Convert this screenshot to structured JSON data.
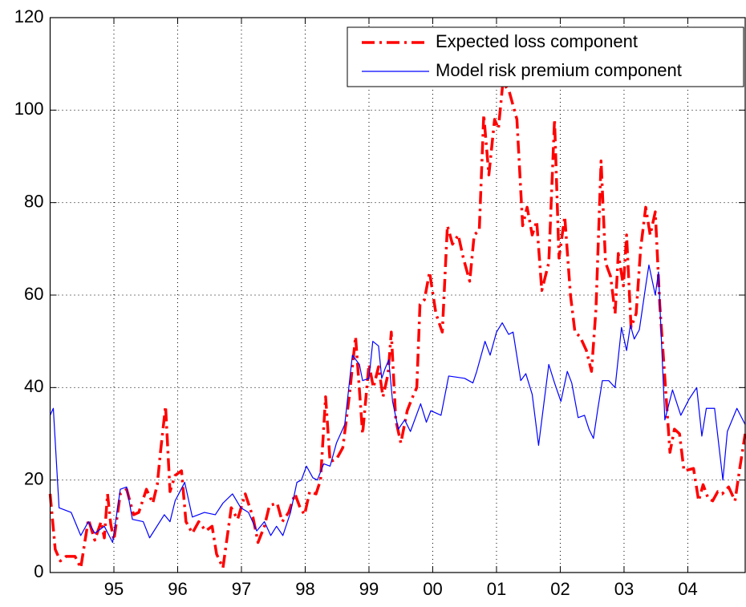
{
  "chart_data": {
    "type": "line",
    "xlim": [
      1994.0,
      2004.9
    ],
    "xticks": [
      {
        "value": 1995,
        "label": "95"
      },
      {
        "value": 1996,
        "label": "96"
      },
      {
        "value": 1997,
        "label": "97"
      },
      {
        "value": 1998,
        "label": "98"
      },
      {
        "value": 1999,
        "label": "99"
      },
      {
        "value": 2000,
        "label": "00"
      },
      {
        "value": 2001,
        "label": "01"
      },
      {
        "value": 2002,
        "label": "02"
      },
      {
        "value": 2003,
        "label": "03"
      },
      {
        "value": 2004,
        "label": "04"
      }
    ],
    "ylim": [
      0,
      120
    ],
    "yticks": [
      0,
      20,
      40,
      60,
      80,
      100,
      120
    ],
    "grid": true,
    "legend": "upper right",
    "series": [
      {
        "name": "Expected loss component",
        "color": "#ff0000",
        "style": "dashdot",
        "x": [
          1994.0,
          1994.08,
          1994.16,
          1994.25,
          1994.39,
          1994.48,
          1994.6,
          1994.7,
          1994.8,
          1994.85,
          1994.9,
          1994.95,
          1995.0,
          1995.1,
          1995.2,
          1995.31,
          1995.39,
          1995.51,
          1995.61,
          1995.68,
          1995.73,
          1995.81,
          1995.88,
          1995.96,
          1996.06,
          1996.13,
          1996.23,
          1996.33,
          1996.44,
          1996.54,
          1996.61,
          1996.71,
          1996.84,
          1996.94,
          1997.06,
          1997.18,
          1997.26,
          1997.36,
          1997.44,
          1997.56,
          1997.64,
          1997.74,
          1997.84,
          1997.92,
          1997.99,
          1998.07,
          1998.17,
          1998.24,
          1998.32,
          1998.39,
          1998.49,
          1998.59,
          1998.69,
          1998.79,
          1998.9,
          1999.0,
          1999.07,
          1999.15,
          1999.22,
          1999.3,
          1999.35,
          1999.42,
          1999.5,
          1999.6,
          1999.67,
          1999.75,
          1999.8,
          1999.87,
          1999.95,
          2000.05,
          2000.15,
          2000.23,
          2000.31,
          2000.4,
          2000.48,
          2000.58,
          2000.65,
          2000.73,
          2000.8,
          2000.88,
          2000.97,
          2001.03,
          2001.1,
          2001.2,
          2001.32,
          2001.41,
          2001.48,
          2001.56,
          2001.63,
          2001.71,
          2001.82,
          2001.91,
          2001.98,
          2002.07,
          2002.16,
          2002.23,
          2002.31,
          2002.41,
          2002.49,
          2002.56,
          2002.64,
          2002.71,
          2002.79,
          2002.86,
          2002.91,
          2002.99,
          2003.04,
          2003.11,
          2003.19,
          2003.26,
          2003.34,
          2003.41,
          2003.49,
          2003.56,
          2003.64,
          2003.72,
          2003.79,
          2003.87,
          2003.94,
          2004.09,
          2004.17,
          2004.24,
          2004.32,
          2004.39,
          2004.47,
          2004.54,
          2004.64,
          2004.74,
          2004.82,
          2004.9
        ],
        "values": [
          17,
          5,
          2.5,
          3.5,
          3.5,
          1,
          11.5,
          7,
          11,
          7.5,
          17,
          10.5,
          7,
          17,
          18,
          12.5,
          13,
          18,
          15,
          19,
          26,
          36,
          17.5,
          21,
          22,
          11,
          8.5,
          11,
          9,
          10,
          4,
          1,
          14,
          11.5,
          17,
          12,
          6.5,
          10,
          14.5,
          15,
          11,
          13,
          17,
          14,
          12.5,
          17.5,
          17,
          20,
          38,
          24,
          24.5,
          27,
          38,
          51,
          30,
          45,
          40,
          44.5,
          38,
          43,
          52,
          33,
          28,
          35,
          37.5,
          40,
          58,
          59,
          65,
          56,
          52,
          75,
          71,
          73,
          68,
          63,
          73,
          74,
          99,
          86,
          98,
          96,
          106,
          104,
          98,
          75,
          79,
          73,
          76,
          61,
          67,
          98,
          68,
          77,
          60,
          52,
          51,
          48,
          43.5,
          57,
          89,
          67,
          64,
          56,
          69,
          62,
          73,
          53,
          56,
          70,
          79,
          73,
          78,
          58,
          42,
          26,
          31,
          30,
          22,
          22.5,
          15.5,
          19,
          16,
          15.5,
          17.5,
          17,
          18.5,
          15.5,
          23,
          30
        ]
      },
      {
        "name": "Model risk premium component",
        "color": "#0000ff",
        "style": "solid",
        "x": [
          1994.0,
          1994.05,
          1994.14,
          1994.33,
          1994.48,
          1994.6,
          1994.7,
          1994.85,
          1994.98,
          1995.1,
          1995.2,
          1995.29,
          1995.46,
          1995.56,
          1995.79,
          1995.88,
          1995.96,
          1996.11,
          1996.23,
          1996.42,
          1996.59,
          1996.71,
          1996.86,
          1996.99,
          1997.11,
          1997.24,
          1997.36,
          1997.46,
          1997.55,
          1997.65,
          1997.77,
          1997.87,
          1997.94,
          1998.02,
          1998.12,
          1998.19,
          1998.29,
          1998.39,
          1998.49,
          1998.62,
          1998.74,
          1998.85,
          1998.9,
          1999.0,
          1999.06,
          1999.15,
          1999.2,
          1999.25,
          1999.31,
          1999.37,
          1999.46,
          1999.56,
          1999.65,
          1999.81,
          1999.9,
          1999.97,
          2000.13,
          2000.25,
          2000.5,
          2000.63,
          2000.69,
          2000.82,
          2000.9,
          2001.0,
          2001.09,
          2001.19,
          2001.26,
          2001.38,
          2001.46,
          2001.56,
          2001.66,
          2001.82,
          2001.91,
          2002.01,
          2002.11,
          2002.18,
          2002.28,
          2002.38,
          2002.45,
          2002.52,
          2002.59,
          2002.66,
          2002.76,
          2002.86,
          2002.96,
          2003.04,
          2003.1,
          2003.16,
          2003.24,
          2003.34,
          2003.39,
          2003.49,
          2003.54,
          2003.64,
          2003.76,
          2003.89,
          2004.02,
          2004.14,
          2004.22,
          2004.29,
          2004.42,
          2004.55,
          2004.62,
          2004.77,
          2004.9
        ],
        "values": [
          34,
          35.5,
          14,
          13,
          8,
          11,
          8.5,
          10,
          6.5,
          18,
          18.5,
          11.5,
          11,
          7.5,
          12.5,
          11,
          15.5,
          19.5,
          12,
          13,
          12.5,
          15,
          17,
          14,
          13,
          9,
          11,
          8,
          10,
          8,
          13,
          19.5,
          20,
          23,
          20.5,
          20,
          23.5,
          23,
          28,
          32,
          47,
          45,
          41.5,
          42,
          50,
          49,
          42,
          44,
          46,
          37,
          31,
          33,
          30.5,
          36.5,
          32.5,
          35,
          34,
          42.5,
          42,
          41,
          43.5,
          50,
          47,
          52,
          54,
          51.5,
          52,
          41.5,
          43,
          38.5,
          27.5,
          45,
          41,
          37,
          43.5,
          41,
          33.5,
          34,
          31,
          29,
          35.5,
          41.5,
          41.5,
          40,
          53,
          48,
          53.5,
          50.5,
          52.5,
          62,
          66.5,
          60,
          65,
          33,
          39.5,
          34,
          37.5,
          40,
          29.5,
          35.5,
          35.5,
          20,
          30.5,
          35.5,
          32
        ]
      }
    ]
  }
}
